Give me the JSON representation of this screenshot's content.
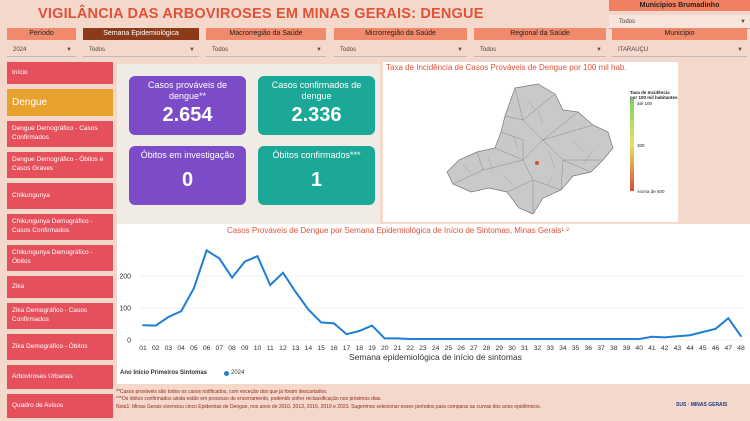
{
  "header": {
    "title": "VIGILÂNCIA DAS ARBOVIROSES EM MINAS GERAIS: DENGUE"
  },
  "municipio_box": {
    "label": "Municípios Brumadinho",
    "value": "Todos"
  },
  "filters": [
    {
      "label": "Período",
      "value": "2024"
    },
    {
      "label": "Semana Epidemiológica",
      "value": "Todos"
    },
    {
      "label": "Macrorregião da Saúde",
      "value": "Todos"
    },
    {
      "label": "Microrregião da Saúde",
      "value": "Todos"
    },
    {
      "label": "Regional da Saúde",
      "value": "Todos"
    },
    {
      "label": "Município",
      "value": "ITARAUÇU"
    }
  ],
  "sidebar": {
    "items": [
      {
        "label": "Início"
      },
      {
        "label": "Dengue"
      },
      {
        "label": "Dengue Demográfico - Casos Confirmados"
      },
      {
        "label": "Dengue Demográfico - Óbitos e Casos Graves"
      },
      {
        "label": "Chikungunya"
      },
      {
        "label": "Chikungunya Demográfico - Casos Confirmados"
      },
      {
        "label": "Chikungunya Demográfico - Óbitos"
      },
      {
        "label": "Zika"
      },
      {
        "label": "Zika Demográfico - Casos Confirmados"
      },
      {
        "label": "Zika Demográfico - Óbitos"
      },
      {
        "label": "Arboviroses Urbanas"
      },
      {
        "label": "Quadro de Avisos"
      }
    ]
  },
  "cards": [
    {
      "label": "Casos prováveis de dengue**",
      "value": "2.654"
    },
    {
      "label": "Casos confirmados de dengue",
      "value": "2.336"
    },
    {
      "label": "Óbitos em investigação",
      "value": "0"
    },
    {
      "label": "Óbitos confirmados***",
      "value": "1"
    }
  ],
  "map": {
    "title": "Taxa de Incidência de Casos Prováveis de Dengue por 100 mil hab.",
    "legend_title": "Taxa de Incidência por 100 mil habitantes",
    "legend_labels": [
      "até 100",
      "300",
      "Acima de 500"
    ],
    "colors": {
      "low": "#7bd06a",
      "mid": "#e8e060",
      "high": "#d84c3a"
    }
  },
  "chart_data": {
    "type": "line",
    "title": "Casos Prováveis de Dengue por Semana Epidemiológica de Início de Sintomas, Minas Gerais¹ ²",
    "xlabel": "Semana epidemiológica de início de sintomas",
    "ylabel": "",
    "x": [
      "01",
      "02",
      "03",
      "04",
      "05",
      "06",
      "07",
      "08",
      "09",
      "10",
      "11",
      "12",
      "13",
      "14",
      "15",
      "16",
      "17",
      "18",
      "19",
      "20",
      "21",
      "22",
      "23",
      "24",
      "25",
      "26",
      "27",
      "28",
      "29",
      "30",
      "31",
      "32",
      "33",
      "34",
      "35",
      "36",
      "37",
      "38",
      "39",
      "40",
      "41",
      "42",
      "43",
      "44",
      "45",
      "46",
      "47",
      "48"
    ],
    "series": [
      {
        "name": "2024",
        "color": "#1f7fd4",
        "values": [
          46,
          45,
          72,
          90,
          162,
          280,
          255,
          195,
          245,
          262,
          172,
          210,
          150,
          95,
          55,
          52,
          18,
          28,
          45,
          5,
          5,
          3,
          3,
          3,
          3,
          3,
          3,
          3,
          3,
          3,
          3,
          3,
          3,
          3,
          3,
          3,
          3,
          3,
          3,
          3,
          10,
          8,
          12,
          15,
          25,
          35,
          68,
          12
        ]
      }
    ],
    "yticks": [
      0,
      100,
      200
    ],
    "ylim": [
      0,
      300
    ],
    "legend_label": "Ano Início Primeiros Sintomas"
  },
  "notes": [
    "**Casos prováveis são todos os casos notificados, com exceção dos que já foram descartados.",
    "***Os óbitos confirmados ainda estão em processo de encerramento, podendo sofrer reclassificação nos próximos dias.",
    "Nota1: Minas Gerais vivenciou cinco Epidemias de Dengue, nos anos de 2010, 2013, 2016, 2019 e 2023. Sugerimos selecionar esses períodos para comparar as curvas dos anos epidêmicos."
  ],
  "logo": {
    "text": "SUS · MINAS GERAIS"
  }
}
